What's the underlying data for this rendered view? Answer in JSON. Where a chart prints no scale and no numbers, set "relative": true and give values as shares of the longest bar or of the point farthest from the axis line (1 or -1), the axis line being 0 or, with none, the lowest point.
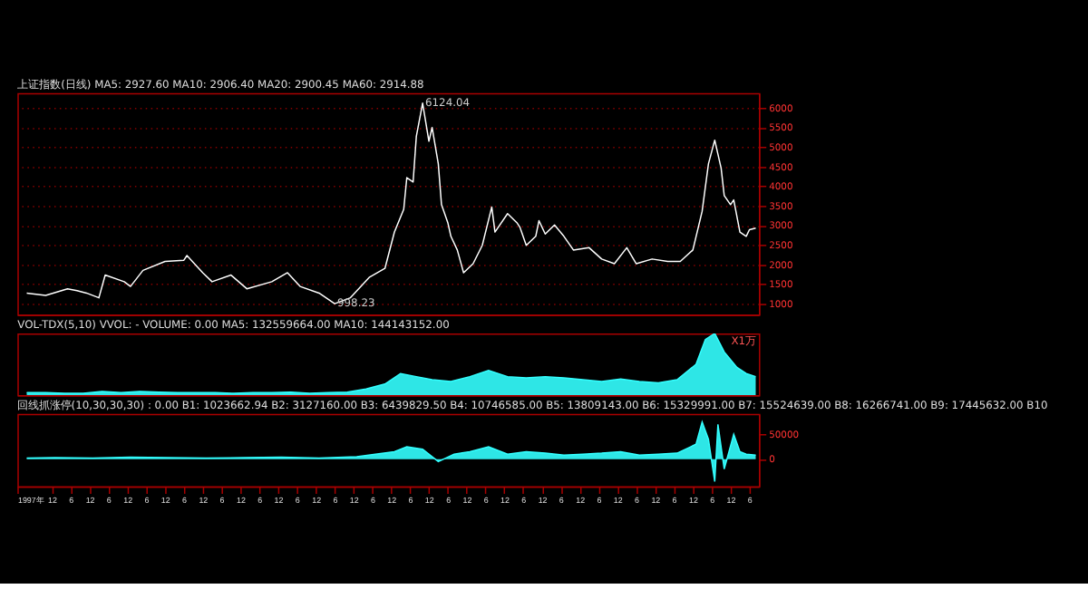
{
  "chart_data": [
    {
      "type": "line",
      "title": "上证指数(日线) MA5: 2927.60 MA10: 2906.40 MA20: 2900.45 MA60: 2914.88",
      "x": [
        "1997-04",
        "1997-10",
        "1998-05",
        "1998-08",
        "1998-11",
        "1999-03",
        "1999-05",
        "1999-11",
        "2000-01",
        "2000-05",
        "2000-12",
        "2001-06",
        "2001-07",
        "2001-12",
        "2002-03",
        "2002-09",
        "2003-02",
        "2003-10",
        "2004-03",
        "2004-07",
        "2005-01",
        "2005-06",
        "2005-11",
        "2006-05",
        "2006-10",
        "2007-01",
        "2007-04",
        "2007-05",
        "2007-07",
        "2007-08",
        "2007-10",
        "2007-12",
        "2008-01",
        "2008-03",
        "2008-04",
        "2008-06",
        "2008-07",
        "2008-09",
        "2008-11",
        "2009-02",
        "2009-05",
        "2009-08",
        "2009-09",
        "2010-01",
        "2010-04",
        "2010-05",
        "2010-07",
        "2010-10",
        "2010-11",
        "2011-01",
        "2011-04",
        "2011-07",
        "2011-10",
        "2012-03",
        "2012-07",
        "2012-11",
        "2013-03",
        "2013-06",
        "2013-11",
        "2014-04",
        "2014-08",
        "2014-12",
        "2015-03",
        "2015-05",
        "2015-07",
        "2015-09",
        "2015-10",
        "2015-12",
        "2016-01",
        "2016-03",
        "2016-05",
        "2016-06",
        "2016-08"
      ],
      "series": [
        {
          "color": "#ffffff",
          "values": [
            1270,
            1210,
            1380,
            1330,
            1270,
            1150,
            1730,
            1560,
            1440,
            1850,
            2080,
            2110,
            2230,
            1790,
            1560,
            1730,
            1380,
            1560,
            1790,
            1440,
            1270,
            998,
            1150,
            1670,
            1900,
            2830,
            3410,
            4220,
            4110,
            5270,
            6124,
            5150,
            5500,
            4570,
            3530,
            3070,
            2720,
            2370,
            1790,
            2020,
            2490,
            3470,
            2830,
            3300,
            3070,
            2950,
            2490,
            2720,
            3120,
            2780,
            3010,
            2720,
            2370,
            2430,
            2140,
            2020,
            2430,
            2020,
            2140,
            2080,
            2080,
            2370,
            3360,
            4570,
            5178,
            4460,
            3760,
            3530,
            3650,
            2830,
            2720,
            2890,
            2930
          ]
        }
      ],
      "xlim": [
        "1997-01",
        "2016-09"
      ],
      "ylim": [
        720,
        6380
      ],
      "yticks": [
        1000,
        1500,
        2000,
        2500,
        3000,
        3500,
        4000,
        4500,
        5000,
        5500,
        6000
      ],
      "grid": "y",
      "tick_labels": "y",
      "legend": false,
      "annotations": [
        {
          "text": "6124.04",
          "x": "2007-10",
          "y": 6124
        },
        {
          "text": "998.23",
          "x": "2005-06",
          "y": 998
        }
      ]
    },
    {
      "type": "area",
      "title": "VOL-TDX(5,10) VVOL: -  VOLUME: 0.00 MA5: 132559664.00 MA10: 144143152.00",
      "relative": true,
      "x": [
        "1997-04",
        "1997-10",
        "1998-04",
        "1998-10",
        "1999-04",
        "1999-10",
        "2000-04",
        "2000-10",
        "2001-04",
        "2001-10",
        "2002-04",
        "2002-10",
        "2003-04",
        "2003-10",
        "2004-04",
        "2004-10",
        "2005-04",
        "2005-10",
        "2006-04",
        "2006-10",
        "2007-03",
        "2007-08",
        "2008-01",
        "2008-07",
        "2009-01",
        "2009-07",
        "2010-01",
        "2010-07",
        "2011-01",
        "2011-07",
        "2012-01",
        "2012-07",
        "2013-01",
        "2013-07",
        "2014-01",
        "2014-07",
        "2015-01",
        "2015-04",
        "2015-07",
        "2015-10",
        "2016-02",
        "2016-05",
        "2016-08"
      ],
      "series": [
        {
          "color": "#33ffff",
          "values": [
            0.04,
            0.04,
            0.03,
            0.03,
            0.06,
            0.04,
            0.06,
            0.05,
            0.04,
            0.04,
            0.04,
            0.03,
            0.04,
            0.04,
            0.05,
            0.03,
            0.04,
            0.05,
            0.1,
            0.18,
            0.35,
            0.3,
            0.25,
            0.22,
            0.3,
            0.4,
            0.3,
            0.28,
            0.3,
            0.28,
            0.25,
            0.22,
            0.26,
            0.22,
            0.2,
            0.25,
            0.5,
            0.9,
            1.0,
            0.7,
            0.45,
            0.35,
            0.3
          ]
        }
      ],
      "xlim": [
        "1997-01",
        "2016-09"
      ],
      "tick_labels": false,
      "legend": false,
      "annotations": [
        "X1万"
      ]
    },
    {
      "type": "area",
      "title": "回线抓涨停(10,30,30,30) : 0.00  B1: 1023662.94  B2: 3127160.00  B3: 6439829.50  B4: 10746585.00  B5: 13809143.00  B6: 15329991.00  B7: 15524639.00  B8: 16266741.00  B9: 17445632.00  B10",
      "x": [
        "1997-04",
        "1998-01",
        "1999-01",
        "2000-01",
        "2001-01",
        "2002-01",
        "2003-01",
        "2004-01",
        "2005-01",
        "2006-01",
        "2006-07",
        "2007-01",
        "2007-05",
        "2007-10",
        "2008-03",
        "2008-08",
        "2009-01",
        "2009-07",
        "2010-01",
        "2010-07",
        "2011-01",
        "2011-07",
        "2012-01",
        "2012-07",
        "2013-01",
        "2013-07",
        "2014-01",
        "2014-07",
        "2015-01",
        "2015-03",
        "2015-05",
        "2015-07",
        "2015-08",
        "2015-10",
        "2016-01",
        "2016-03",
        "2016-05",
        "2016-08"
      ],
      "series": [
        {
          "color": "#33ffff",
          "values": [
            2000,
            3000,
            2000,
            4000,
            3000,
            2000,
            3000,
            4000,
            2000,
            5000,
            10000,
            15000,
            25000,
            20000,
            -5000,
            10000,
            15000,
            25000,
            10000,
            15000,
            12000,
            8000,
            10000,
            12000,
            15000,
            8000,
            10000,
            12000,
            30000,
            75000,
            40000,
            -45000,
            70000,
            -20000,
            50000,
            15000,
            10000,
            8000
          ]
        }
      ],
      "xlim": [
        "1997-01",
        "2016-09"
      ],
      "ylim": [
        -55000,
        91000
      ],
      "yticks": [
        0,
        50000
      ],
      "grid": false,
      "legend": false,
      "xticks": [
        {
          "value": "1997-01",
          "label": "1997年"
        },
        {
          "value": "1997-12",
          "label": "12"
        },
        {
          "value": "1998-06",
          "label": "6"
        },
        {
          "value": "1998-12",
          "label": "12"
        },
        {
          "value": "1999-06",
          "label": "6"
        },
        {
          "value": "1999-12",
          "label": "12"
        },
        {
          "value": "2000-06",
          "label": "6"
        },
        {
          "value": "2000-12",
          "label": "12"
        },
        {
          "value": "2001-06",
          "label": "6"
        },
        {
          "value": "2001-12",
          "label": "12"
        },
        {
          "value": "2002-06",
          "label": "6"
        },
        {
          "value": "2002-12",
          "label": "12"
        },
        {
          "value": "2003-06",
          "label": "6"
        },
        {
          "value": "2003-12",
          "label": "12"
        },
        {
          "value": "2004-06",
          "label": "6"
        },
        {
          "value": "2004-12",
          "label": "12"
        },
        {
          "value": "2005-06",
          "label": "6"
        },
        {
          "value": "2005-12",
          "label": "12"
        },
        {
          "value": "2006-06",
          "label": "6"
        },
        {
          "value": "2006-12",
          "label": "12"
        },
        {
          "value": "2007-06",
          "label": "6"
        },
        {
          "value": "2007-12",
          "label": "12"
        },
        {
          "value": "2008-06",
          "label": "6"
        },
        {
          "value": "2008-12",
          "label": "12"
        },
        {
          "value": "2009-06",
          "label": "6"
        },
        {
          "value": "2009-12",
          "label": "12"
        },
        {
          "value": "2010-06",
          "label": "6"
        },
        {
          "value": "2010-12",
          "label": "12"
        },
        {
          "value": "2011-06",
          "label": "6"
        },
        {
          "value": "2011-12",
          "label": "12"
        },
        {
          "value": "2012-06",
          "label": "6"
        },
        {
          "value": "2012-12",
          "label": "12"
        },
        {
          "value": "2013-06",
          "label": "6"
        },
        {
          "value": "2013-12",
          "label": "12"
        },
        {
          "value": "2014-06",
          "label": "6"
        },
        {
          "value": "2014-12",
          "label": "12"
        },
        {
          "value": "2015-06",
          "label": "6"
        },
        {
          "value": "2015-12",
          "label": "12"
        },
        {
          "value": "2016-06",
          "label": "6"
        }
      ]
    }
  ]
}
